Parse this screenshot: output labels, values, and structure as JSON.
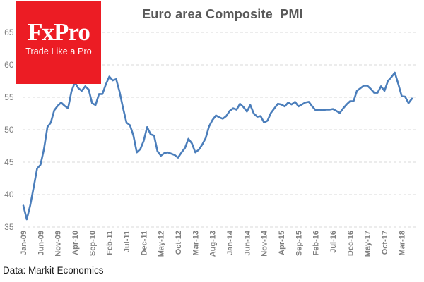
{
  "header": {
    "title": "Euro area Composite  PMI"
  },
  "logo": {
    "name": "FxPro",
    "tagline": "Trade Like a Pro",
    "bg_color": "#ec1c24",
    "text_color": "#ffffff"
  },
  "source_note": "Data: Markit Economics",
  "chart_data": {
    "type": "line",
    "title": "Euro area Composite PMI",
    "xlabel": "",
    "ylabel": "",
    "ylim": [
      35,
      65
    ],
    "y_ticks": [
      35,
      40,
      45,
      50,
      55,
      60,
      65
    ],
    "grid": "horizontal-dashed",
    "grid_color": "#d9d9d9",
    "tick_color": "#7f7f7f",
    "legend_position": "none",
    "x_start": "Jan-09",
    "x_end": "Jun-18",
    "x_tick_every": 5,
    "x_tick_labels": [
      "Jan-09",
      "Jun-09",
      "Nov-09",
      "Apr-10",
      "Sep-10",
      "Feb-11",
      "Jul-11",
      "Dec-11",
      "May-12",
      "Oct-12",
      "Mar-13",
      "Aug-13",
      "Jan-14",
      "Jun-14",
      "Nov-14",
      "Apr-15",
      "Sep-15",
      "Feb-16",
      "Jul-16",
      "Dec-16",
      "May-17",
      "Oct-17",
      "Mar-18"
    ],
    "series": [
      {
        "name": "Euro area Composite PMI",
        "color": "#4b7ebb",
        "values": [
          38.3,
          36.2,
          38.3,
          41.1,
          44.0,
          44.6,
          47.0,
          50.4,
          51.1,
          53.0,
          53.7,
          54.2,
          53.7,
          53.3,
          55.9,
          57.3,
          56.4,
          56.0,
          56.7,
          56.2,
          54.1,
          53.8,
          55.5,
          55.5,
          57.0,
          58.2,
          57.6,
          57.8,
          55.8,
          53.3,
          51.1,
          50.7,
          49.1,
          46.5,
          47.0,
          48.3,
          50.4,
          49.3,
          49.1,
          46.7,
          46.0,
          46.4,
          46.5,
          46.3,
          46.1,
          45.7,
          46.5,
          47.2,
          48.6,
          47.9,
          46.5,
          46.9,
          47.7,
          48.7,
          50.5,
          51.5,
          52.2,
          51.9,
          51.7,
          52.1,
          52.9,
          53.3,
          53.1,
          54.0,
          53.5,
          52.8,
          53.8,
          52.5,
          52.0,
          52.1,
          51.1,
          51.4,
          52.6,
          53.3,
          54.0,
          53.9,
          53.6,
          54.2,
          53.9,
          54.3,
          53.6,
          53.9,
          54.2,
          54.3,
          53.6,
          53.0,
          53.1,
          53.0,
          53.1,
          53.1,
          53.2,
          52.9,
          52.6,
          53.3,
          53.9,
          54.4,
          54.4,
          56.0,
          56.4,
          56.8,
          56.8,
          56.3,
          55.7,
          55.7,
          56.7,
          56.0,
          57.5,
          58.1,
          58.8,
          57.1,
          55.2,
          55.1,
          54.1,
          54.8
        ]
      }
    ]
  }
}
